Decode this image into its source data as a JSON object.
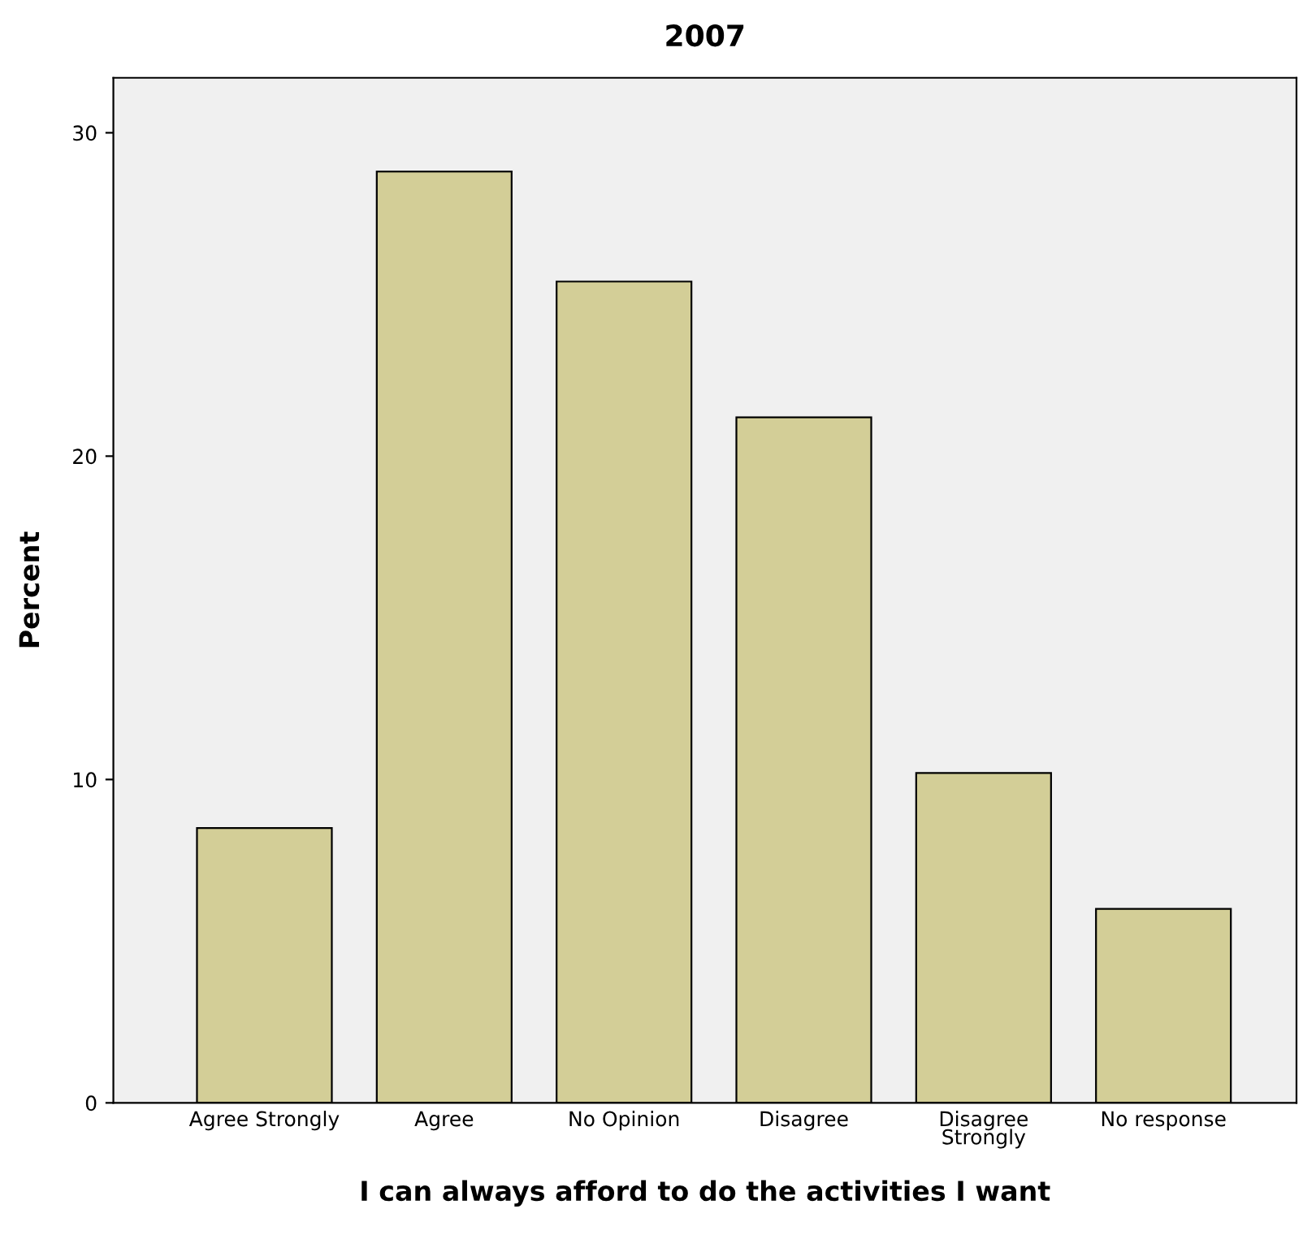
{
  "chart_data": {
    "type": "bar",
    "title": "2007",
    "xlabel": "I can always afford to do the activities I want",
    "ylabel": "Percent",
    "categories": [
      "Agree Strongly",
      "Agree",
      "No Opinion",
      "Disagree",
      "Disagree\nStrongly",
      "No response"
    ],
    "values": [
      8.5,
      28.8,
      25.4,
      21.2,
      10.2,
      6.0
    ],
    "color": "#d3ce97",
    "ylim": [
      0,
      31.7
    ],
    "yticks": [
      0,
      10,
      20,
      30
    ],
    "grid": false,
    "legend": false
  }
}
